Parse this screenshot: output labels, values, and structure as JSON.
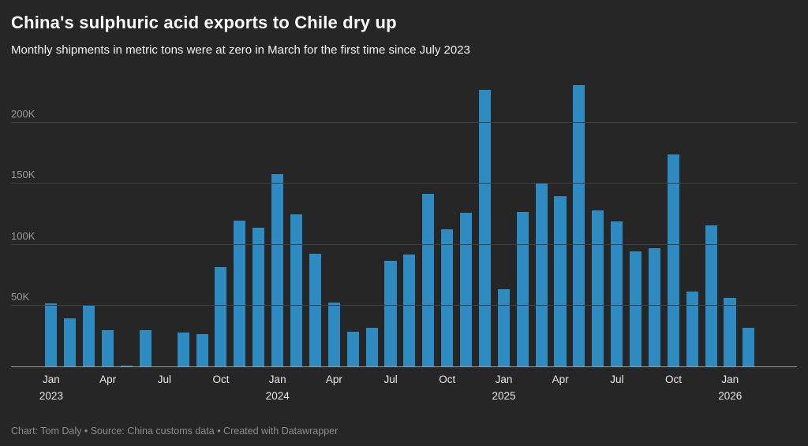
{
  "header": {
    "title": "China's sulphuric acid exports to Chile dry up",
    "subtitle": "Monthly shipments in metric tons were at zero in March for the first time since July 2023"
  },
  "footer": {
    "credit": "Chart: Tom Daly • Source: China customs data • Created with Datawrapper"
  },
  "colors": {
    "background": "#262626",
    "bar": "#2d8bc1",
    "grid": "#3f3f3f",
    "axis_line": "#9d9d9d",
    "y_tick_label": "#9b9b9b",
    "x_tick_label": "#e8e8e8"
  },
  "chart_data": {
    "type": "bar",
    "title": "China's sulphuric acid exports to Chile dry up",
    "subtitle": "Monthly shipments in metric tons were at zero in March for the first time since July 2023",
    "xlabel": "",
    "ylabel": "metric tons",
    "ylim": [
      0,
      236000
    ],
    "grid": "horizontal",
    "legend": "none",
    "y_gridlines": [
      {
        "value": 50000,
        "label": "50K"
      },
      {
        "value": 100000,
        "label": "100K"
      },
      {
        "value": 150000,
        "label": "150K"
      },
      {
        "value": 200000,
        "label": "200K"
      }
    ],
    "x": [
      "Jan 2023",
      "Feb 2023",
      "Mar 2023",
      "Apr 2023",
      "May 2023",
      "Jun 2023",
      "Jul 2023",
      "Aug 2023",
      "Sep 2023",
      "Oct 2023",
      "Nov 2023",
      "Dec 2023",
      "Jan 2024",
      "Feb 2024",
      "Mar 2024",
      "Apr 2024",
      "May 2024",
      "Jun 2024",
      "Jul 2024",
      "Aug 2024",
      "Sep 2024",
      "Oct 2024",
      "Nov 2024",
      "Dec 2024",
      "Jan 2025",
      "Feb 2025",
      "Mar 2025",
      "Apr 2025",
      "May 2025",
      "Jun 2025",
      "Jul 2025",
      "Aug 2025",
      "Sep 2025",
      "Oct 2025",
      "Nov 2025",
      "Dec 2025",
      "Jan 2026",
      "Feb 2026",
      "Mar 2026"
    ],
    "values": [
      52000,
      40000,
      50000,
      30000,
      1000,
      30000,
      0,
      28000,
      27000,
      82000,
      120000,
      114000,
      158000,
      125000,
      93000,
      53000,
      29000,
      32000,
      87000,
      92000,
      142000,
      113000,
      126000,
      227000,
      64000,
      127000,
      151000,
      140000,
      231000,
      128000,
      119000,
      95000,
      97000,
      174000,
      62000,
      116000,
      57000,
      32000,
      0
    ],
    "x_ticks": [
      {
        "index": 0,
        "label": "Jan",
        "year": "2023"
      },
      {
        "index": 3,
        "label": "Apr",
        "year": ""
      },
      {
        "index": 6,
        "label": "Jul",
        "year": ""
      },
      {
        "index": 9,
        "label": "Oct",
        "year": ""
      },
      {
        "index": 12,
        "label": "Jan",
        "year": "2024"
      },
      {
        "index": 15,
        "label": "Apr",
        "year": ""
      },
      {
        "index": 18,
        "label": "Jul",
        "year": ""
      },
      {
        "index": 21,
        "label": "Oct",
        "year": ""
      },
      {
        "index": 24,
        "label": "Jan",
        "year": "2025"
      },
      {
        "index": 27,
        "label": "Apr",
        "year": ""
      },
      {
        "index": 30,
        "label": "Jul",
        "year": ""
      },
      {
        "index": 33,
        "label": "Oct",
        "year": ""
      },
      {
        "index": 36,
        "label": "Jan",
        "year": "2026"
      }
    ]
  }
}
